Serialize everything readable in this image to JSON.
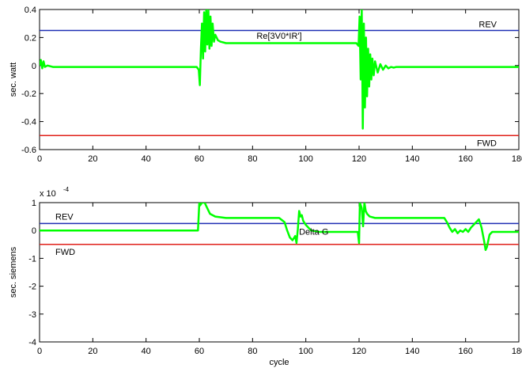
{
  "chart_data": [
    {
      "type": "line",
      "ylabel": "sec. watt",
      "xlabel": "",
      "xlim": [
        0,
        180
      ],
      "ylim": [
        -0.6,
        0.4
      ],
      "xticks": [
        0,
        20,
        40,
        60,
        80,
        100,
        120,
        140,
        160,
        180
      ],
      "yticks": [
        0.4,
        0.2,
        0,
        -0.2,
        -0.4,
        -0.6
      ],
      "ytick_labels": [
        "0.4",
        "0.2",
        "0",
        "-0.2",
        "-0.4",
        "-0.6"
      ],
      "exponent_label": "",
      "grid": false,
      "thresholds": [
        {
          "label": "REV",
          "value": 0.25,
          "color": "#1f2fb4"
        },
        {
          "label": "FWD",
          "value": -0.5,
          "color": "#e0201a"
        }
      ],
      "annotation": {
        "text": "Re[3V0*IR']",
        "x": 90,
        "y": 0.19
      },
      "series": [
        {
          "color": "#00ff00",
          "x": [
            0,
            0.5,
            1,
            1.5,
            2,
            3,
            5,
            20,
            40,
            59,
            59.8,
            60.2,
            60.6,
            61,
            61.4,
            61.8,
            62.2,
            62.6,
            63,
            63.4,
            63.8,
            64.2,
            64.6,
            65,
            65.5,
            66,
            67,
            68,
            70,
            72,
            75,
            80,
            90,
            100,
            110,
            119,
            119.8,
            120.2,
            120.6,
            121,
            121.4,
            121.8,
            122.2,
            122.6,
            123,
            123.4,
            123.8,
            124.2,
            124.6,
            125,
            125.5,
            126,
            127,
            128,
            129,
            130,
            131,
            132,
            133,
            134,
            136,
            140,
            160,
            180
          ],
          "y": [
            0,
            0.04,
            -0.02,
            0.03,
            -0.01,
            0,
            -0.01,
            -0.01,
            -0.01,
            -0.01,
            -0.03,
            -0.14,
            0.12,
            0.3,
            0.05,
            0.38,
            0.1,
            0.4,
            0.15,
            0.4,
            0.12,
            0.35,
            0.14,
            0.3,
            0.17,
            0.22,
            0.18,
            0.17,
            0.16,
            0.16,
            0.16,
            0.16,
            0.16,
            0.16,
            0.16,
            0.16,
            0.14,
            0.35,
            -0.1,
            0.4,
            -0.45,
            0.3,
            -0.3,
            0.2,
            -0.22,
            0.12,
            -0.15,
            0.08,
            -0.1,
            0.05,
            -0.07,
            0.03,
            -0.05,
            0.01,
            -0.03,
            0,
            -0.02,
            -0.01,
            -0.015,
            -0.01,
            -0.01,
            -0.01,
            -0.01,
            -0.01
          ]
        }
      ]
    },
    {
      "type": "line",
      "ylabel": "sec. siemens",
      "xlabel": "cycle",
      "xlim": [
        0,
        180
      ],
      "ylim": [
        -4,
        1
      ],
      "xticks": [
        0,
        20,
        40,
        60,
        80,
        100,
        120,
        140,
        160,
        180
      ],
      "yticks": [
        1,
        0,
        -1,
        -2,
        -3,
        -4
      ],
      "ytick_labels": [
        "1",
        "0",
        "-1",
        "-2",
        "-3",
        "-4"
      ],
      "exponent_label": "x 10",
      "exponent_power": "-4",
      "grid": false,
      "thresholds": [
        {
          "label": "REV",
          "value": 0.25,
          "color": "#1f2fb4"
        },
        {
          "label": "FWD",
          "value": -0.5,
          "color": "#e0201a"
        }
      ],
      "annotation": {
        "text": "Delta G",
        "x": 103,
        "y": -0.15
      },
      "series": [
        {
          "color": "#00ff00",
          "x": [
            0,
            20,
            40,
            59.5,
            60,
            60.3,
            61,
            62,
            63,
            64,
            66,
            70,
            80,
            90,
            92,
            93,
            94,
            95,
            96,
            96.5,
            97,
            97.5,
            98,
            98.5,
            99,
            100,
            101,
            102,
            105,
            110,
            115,
            119.5,
            120,
            120.3,
            121,
            121.5,
            122,
            122.5,
            123,
            124,
            126,
            130,
            140,
            150,
            152,
            153,
            154,
            155,
            156,
            157,
            158,
            159,
            160,
            161,
            162,
            163,
            164,
            165,
            166,
            167,
            167.5,
            168,
            169,
            170,
            171,
            180
          ],
          "y": [
            0,
            0,
            0,
            0,
            1,
            0.9,
            1,
            1,
            0.8,
            0.6,
            0.5,
            0.45,
            0.45,
            0.45,
            0.3,
            0,
            -0.25,
            -0.35,
            -0.2,
            -0.45,
            0.05,
            0.7,
            0.5,
            0.55,
            0.35,
            0.2,
            0.1,
            0,
            -0.05,
            -0.05,
            -0.05,
            -0.05,
            -0.45,
            1,
            0.8,
            0.15,
            1,
            0.7,
            0.6,
            0.5,
            0.45,
            0.45,
            0.45,
            0.45,
            0.45,
            0.3,
            0.1,
            -0.05,
            0.05,
            -0.1,
            0,
            -0.05,
            0.05,
            -0.05,
            0.1,
            0.2,
            0.3,
            0.4,
            0.1,
            -0.4,
            -0.7,
            -0.6,
            -0.15,
            -0.05,
            -0.05,
            -0.05
          ]
        }
      ]
    }
  ]
}
